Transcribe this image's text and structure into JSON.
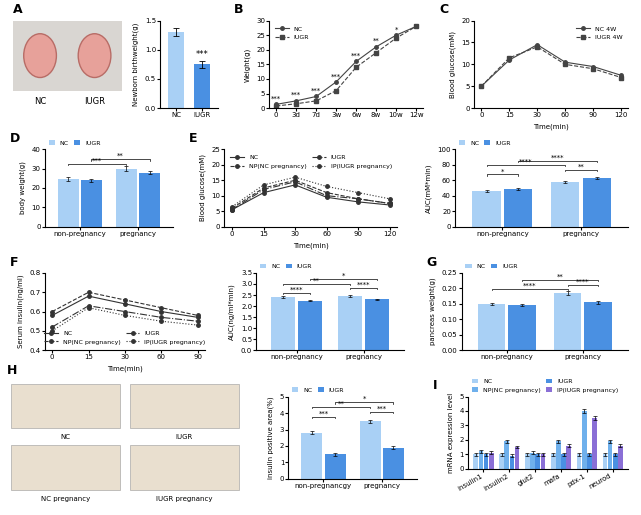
{
  "chart_data": [
    {
      "panel": "A",
      "type": "image",
      "labels": [
        "NC",
        "IUGR"
      ]
    },
    {
      "type": "bar",
      "ylabel": "Newborn birthweight(g)",
      "categories": [
        "NC",
        "IUGR"
      ],
      "values": [
        1.3,
        0.75
      ],
      "errors": [
        0.07,
        0.06
      ],
      "colors": [
        "#a9d0f5",
        "#4a90e2"
      ],
      "ylim": [
        0,
        1.5
      ],
      "yticks": [
        {
          "value": 0,
          "label": "0.0"
        },
        {
          "value": 0.5,
          "label": "0.5"
        },
        {
          "value": 1.0,
          "label": "1.0"
        },
        {
          "value": 1.5,
          "label": "1.5"
        }
      ],
      "annotations": [
        {
          "text": "***",
          "category": "IUGR"
        }
      ]
    },
    {
      "panel": "B",
      "type": "line",
      "ylabel": "Weight(g)",
      "categories": [
        "0",
        "3d",
        "7d",
        "3w",
        "6w",
        "8w",
        "10w",
        "12w"
      ],
      "series": [
        {
          "name": "NC",
          "color": "#444444",
          "marker": "circle",
          "line_style": "solid",
          "values": [
            1.3,
            2.5,
            4,
            9,
            16,
            21,
            25,
            28
          ]
        },
        {
          "name": "IUGR",
          "color": "#444444",
          "marker": "square",
          "line_style": "dashed",
          "values": [
            0.75,
            1.5,
            2.5,
            6,
            14,
            19,
            24,
            28
          ]
        }
      ],
      "point_labels": [
        "***",
        "***",
        "***",
        "***",
        "***",
        "**",
        "*",
        null
      ],
      "ylim": [
        0,
        30
      ],
      "yticks": [
        0,
        5,
        10,
        15,
        20,
        25,
        30
      ],
      "legend": "upper left"
    },
    {
      "panel": "C",
      "type": "line",
      "ylabel": "Blood glucose(mM)",
      "xlabel": "Time(min)",
      "categories": [
        "0",
        "15",
        "30",
        "60",
        "90",
        "120"
      ],
      "series": [
        {
          "name": "NC 4W",
          "color": "#444444",
          "marker": "circle",
          "line_style": "solid",
          "values": [
            5,
            11,
            14.5,
            10.5,
            9.5,
            7.5
          ]
        },
        {
          "name": "IUGR 4W",
          "color": "#444444",
          "marker": "square",
          "line_style": "dashed",
          "values": [
            5,
            11.5,
            14,
            10,
            9,
            7
          ]
        }
      ],
      "ylim": [
        0,
        20
      ],
      "yticks": [
        0,
        5,
        10,
        15,
        20
      ],
      "legend": "upper right"
    },
    {
      "panel": "D",
      "type": "grouped_bar",
      "ylabel": "body weight(g)",
      "categories": [
        "non-pregnancy",
        "pregnancy"
      ],
      "series": [
        {
          "name": "NC",
          "color": "#a9d0f5",
          "values": [
            24.5,
            30
          ],
          "errors": [
            1,
            1.2
          ]
        },
        {
          "name": "IUGR",
          "color": "#4a90e2",
          "values": [
            24,
            28
          ],
          "errors": [
            0.8,
            1
          ]
        }
      ],
      "comparisons": [
        {
          "pair": [
            0,
            2
          ],
          "text": "***"
        },
        {
          "pair": [
            1,
            3
          ],
          "text": "**"
        }
      ],
      "ylim": [
        0,
        40
      ],
      "yticks": [
        0,
        10,
        20,
        30,
        40
      ],
      "legend": "top"
    },
    {
      "panel": "E",
      "type": "line",
      "ylabel": "Blood glucose(mM)",
      "xlabel": "Time(min)",
      "categories": [
        "0",
        "15",
        "30",
        "60",
        "90",
        "120"
      ],
      "series": [
        {
          "name": "NC",
          "color": "#333333",
          "line_style": "solid",
          "values": [
            5.5,
            11,
            13.5,
            9.5,
            8,
            7
          ]
        },
        {
          "name": "NP(NC pregnancy)",
          "color": "#333333",
          "line_style": "dashed",
          "values": [
            6,
            12.5,
            15,
            11,
            9,
            7.5
          ]
        },
        {
          "name": "IUGR",
          "color": "#333333",
          "line_style": "dashdot",
          "values": [
            5.5,
            12,
            14.5,
            10,
            9,
            7.5
          ]
        },
        {
          "name": "IP(IUGR pregnancy)",
          "color": "#333333",
          "line_style": "dotted",
          "values": [
            6.5,
            13.5,
            16,
            13,
            11,
            9
          ]
        }
      ],
      "ylim": [
        0,
        25
      ],
      "yticks": [
        0,
        5,
        10,
        15,
        20,
        25
      ],
      "legend": "upper right"
    },
    {
      "type": "grouped_bar",
      "ylabel": "AUC(mM*min)",
      "categories": [
        "non-pregnancy",
        "pregnancy"
      ],
      "series": [
        {
          "name": "NC",
          "color": "#a9d0f5",
          "values": [
            46,
            58
          ],
          "errors": [
            1.5,
            1.5
          ]
        },
        {
          "name": "IUGR",
          "color": "#4a90e2",
          "values": [
            49,
            63
          ],
          "errors": [
            1.5,
            1.5
          ]
        }
      ],
      "comparisons": [
        {
          "pair": [
            0,
            1
          ],
          "text": "*"
        },
        {
          "pair": [
            2,
            3
          ],
          "text": "**"
        },
        {
          "pair": [
            0,
            2
          ],
          "text": "****"
        },
        {
          "pair": [
            1,
            3
          ],
          "text": "****"
        }
      ],
      "ylim": [
        0,
        100
      ],
      "yticks": [
        0,
        20,
        40,
        60,
        80,
        100
      ],
      "legend": "top"
    },
    {
      "panel": "F",
      "type": "line",
      "ylabel": "Serum insulin(ng/ml)",
      "xlabel": "Time(min)",
      "categories": [
        "0",
        "15",
        "30",
        "60",
        "90"
      ],
      "series": [
        {
          "name": "NC",
          "color": "#333333",
          "line_style": "solid",
          "values": [
            0.58,
            0.68,
            0.64,
            0.6,
            0.57
          ]
        },
        {
          "name": "NP(NC pregnancy)",
          "color": "#333333",
          "line_style": "dashed",
          "values": [
            0.6,
            0.7,
            0.66,
            0.62,
            0.58
          ]
        },
        {
          "name": "IUGR",
          "color": "#333333",
          "line_style": "dashdot",
          "values": [
            0.52,
            0.63,
            0.6,
            0.57,
            0.55
          ]
        },
        {
          "name": "IP(IUGR pregnancy)",
          "color": "#333333",
          "line_style": "dotted",
          "values": [
            0.5,
            0.62,
            0.58,
            0.55,
            0.53
          ]
        }
      ],
      "ylim": [
        0.4,
        0.8
      ],
      "yticks": [
        0.4,
        0.5,
        0.6,
        0.7,
        0.8
      ],
      "legend": "lower center"
    },
    {
      "type": "grouped_bar",
      "ylabel": "AUC(ng/ml*min)",
      "categories": [
        "non-pregnancy",
        "pregnancy"
      ],
      "series": [
        {
          "name": "NC",
          "color": "#a9d0f5",
          "values": [
            2.4,
            2.45
          ],
          "errors": [
            0.04,
            0.04
          ]
        },
        {
          "name": "IUGR",
          "color": "#4a90e2",
          "values": [
            2.25,
            2.3
          ],
          "errors": [
            0.04,
            0.04
          ]
        }
      ],
      "comparisons": [
        {
          "pair": [
            0,
            1
          ],
          "text": "****"
        },
        {
          "pair": [
            2,
            3
          ],
          "text": "****"
        },
        {
          "pair": [
            0,
            2
          ],
          "text": "**"
        },
        {
          "pair": [
            1,
            3
          ],
          "text": "*"
        }
      ],
      "ylim": [
        0,
        3.5
      ],
      "yticks": [
        {
          "value": 0,
          "label": "0.0"
        },
        {
          "value": 0.5,
          "label": "0.5"
        },
        {
          "value": 1.0,
          "label": "1.0"
        },
        {
          "value": 1.5,
          "label": "1.5"
        },
        {
          "value": 2.0,
          "label": "2.0"
        },
        {
          "value": 2.5,
          "label": "2.5"
        },
        {
          "value": 3.0,
          "label": "3.0"
        },
        {
          "value": 3.5,
          "label": "3.5"
        }
      ],
      "legend": "top"
    },
    {
      "panel": "G",
      "type": "grouped_bar",
      "ylabel": "pancreas weight(g)",
      "categories": [
        "non-pregnancy",
        "pregnancy"
      ],
      "series": [
        {
          "name": "NC",
          "color": "#a9d0f5",
          "values": [
            0.15,
            0.185
          ],
          "errors": [
            0.003,
            0.005
          ]
        },
        {
          "name": "IUGR",
          "color": "#4a90e2",
          "values": [
            0.145,
            0.155
          ],
          "errors": [
            0.003,
            0.005
          ]
        }
      ],
      "comparisons": [
        {
          "pair": [
            0,
            2
          ],
          "text": "****"
        },
        {
          "pair": [
            2,
            3
          ],
          "text": "****"
        },
        {
          "pair": [
            1,
            3
          ],
          "text": "**"
        }
      ],
      "ylim": [
        0,
        0.25
      ],
      "yticks": [
        {
          "value": 0,
          "label": "0.00"
        },
        {
          "value": 0.05,
          "label": "0.05"
        },
        {
          "value": 0.1,
          "label": "0.10"
        },
        {
          "value": 0.15,
          "label": "0.15"
        },
        {
          "value": 0.2,
          "label": "0.20"
        },
        {
          "value": 0.25,
          "label": "0.25"
        }
      ],
      "legend": "top"
    },
    {
      "panel": "H",
      "type": "image",
      "labels": [
        "NC",
        "IUGR",
        "NC pregnancy",
        "IUGR pregnancy"
      ]
    },
    {
      "type": "grouped_bar",
      "ylabel": "insulin positive area(%)",
      "categories": [
        "non-pregnancgy",
        "pregnancy"
      ],
      "series": [
        {
          "name": "NC",
          "color": "#a9d0f5",
          "values": [
            2.8,
            3.5
          ],
          "errors": [
            0.1,
            0.1
          ]
        },
        {
          "name": "IUGR",
          "color": "#4a90e2",
          "values": [
            1.5,
            1.9
          ],
          "errors": [
            0.1,
            0.08
          ]
        }
      ],
      "comparisons": [
        {
          "pair": [
            0,
            1
          ],
          "text": "***"
        },
        {
          "pair": [
            2,
            3
          ],
          "text": "***"
        },
        {
          "pair": [
            0,
            2
          ],
          "text": "**"
        },
        {
          "pair": [
            1,
            3
          ],
          "text": "*"
        }
      ],
      "ylim": [
        0,
        5
      ],
      "yticks": [
        0,
        1,
        2,
        3,
        4,
        5
      ],
      "legend": "top"
    },
    {
      "panel": "I",
      "type": "grouped_bar",
      "ylabel": "mRNA expression level",
      "categories": [
        "insulin1",
        "insulin2",
        "glut2",
        "mafa",
        "pdx-1",
        "neurod"
      ],
      "series": [
        {
          "name": "NC",
          "color": "#a9d0f5",
          "values": [
            1,
            1,
            1,
            1,
            1,
            1
          ],
          "errors": [
            0.1,
            0.1,
            0.1,
            0.1,
            0.1,
            0.1
          ]
        },
        {
          "name": "NP(NC pregnancy)",
          "color": "#6fb0ec",
          "values": [
            1.2,
            1.9,
            1.1,
            1.9,
            4.0,
            1.9
          ],
          "errors": [
            0.1,
            0.1,
            0.1,
            0.1,
            0.15,
            0.1
          ]
        },
        {
          "name": "IUGR",
          "color": "#4a90e2",
          "values": [
            1.0,
            0.9,
            1.0,
            1.0,
            1.0,
            1.0
          ],
          "errors": [
            0.1,
            0.1,
            0.1,
            0.1,
            0.1,
            0.1
          ]
        },
        {
          "name": "IP(IUGR pregnancy)",
          "color": "#8a6fd6",
          "values": [
            1.1,
            1.5,
            1.0,
            1.6,
            3.5,
            1.6
          ],
          "errors": [
            0.1,
            0.1,
            0.1,
            0.1,
            0.15,
            0.1
          ]
        }
      ],
      "ylim": [
        0,
        5
      ],
      "yticks": [
        0,
        1,
        2,
        3,
        4,
        5
      ],
      "legend": "top"
    }
  ]
}
